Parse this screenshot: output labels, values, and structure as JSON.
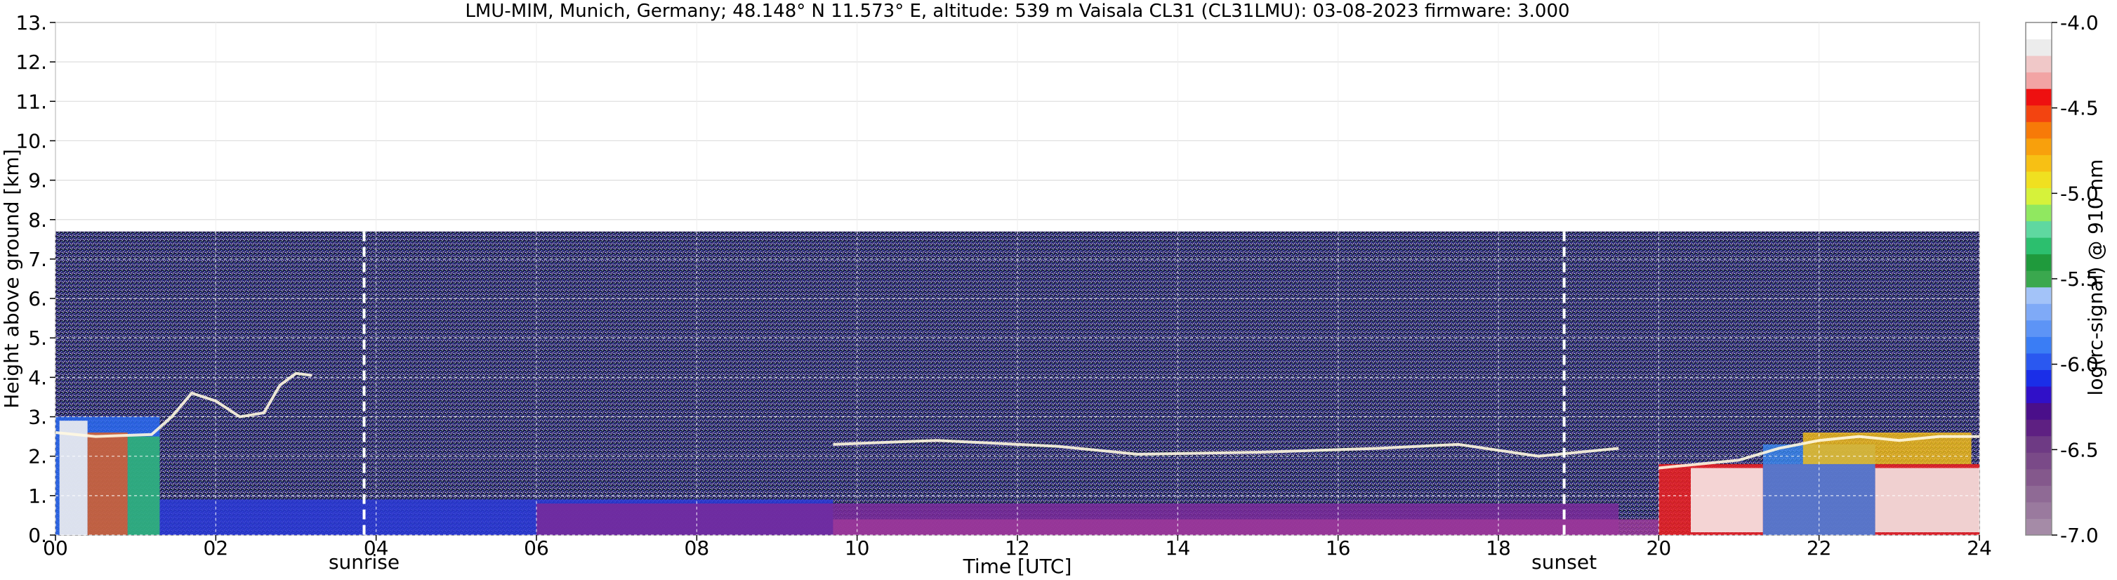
{
  "chart_data": {
    "type": "heatmap",
    "title": "LMU-MIM, Munich, Germany; 48.148° N 11.573° E, altitude: 539 m    Vaisala CL31 (CL31LMU): 03-08-2023    firmware: 3.000",
    "xlabel": "Time [UTC]",
    "ylabel": "Height above ground [km]",
    "xlim": [
      0,
      24
    ],
    "ylim": [
      0,
      13
    ],
    "x_ticks": [
      0,
      2,
      4,
      6,
      8,
      10,
      12,
      14,
      16,
      18,
      20,
      22,
      24
    ],
    "x_tick_labels": [
      "00",
      "02",
      "04",
      "06",
      "08",
      "10",
      "12",
      "14",
      "16",
      "18",
      "20",
      "22",
      "24"
    ],
    "y_ticks": [
      0,
      1,
      2,
      3,
      4,
      5,
      6,
      7,
      8,
      9,
      10,
      11,
      12,
      13
    ],
    "y_tick_labels": [
      "0.",
      "1.",
      "2.",
      "3.",
      "4.",
      "5.",
      "6.",
      "7.",
      "8.",
      "9.",
      "10.",
      "11.",
      "12.",
      "13."
    ],
    "grid": true,
    "data_top_km": 7.7,
    "colorbar": {
      "label": "log(rc-signal) @ 910 nm",
      "range": [
        -7.0,
        -4.0
      ],
      "ticks": [
        -7.0,
        -6.5,
        -6.0,
        -5.5,
        -5.0,
        -4.5,
        -4.0
      ],
      "tick_labels": [
        "-7.0",
        "-6.5",
        "-6.0",
        "-5.5",
        "-5.0",
        "-4.5",
        "-4.0"
      ],
      "colors": [
        "#a58ba7",
        "#9a7a9e",
        "#8f6a95",
        "#84588c",
        "#7a4a88",
        "#6e3a84",
        "#5e2082",
        "#4a0f8a",
        "#3010c8",
        "#1a2ee8",
        "#2a58f0",
        "#3a7df5",
        "#5d94f6",
        "#7faaf7",
        "#a3c3f8",
        "#3aa84e",
        "#1f9a3c",
        "#2cbf6e",
        "#5fd8a0",
        "#90e860",
        "#d6f23a",
        "#f0e020",
        "#f7c014",
        "#f8a00c",
        "#f77a08",
        "#f34410",
        "#ee1010",
        "#f2a4a4",
        "#f0c8c8",
        "#ececec",
        "#ffffff"
      ]
    },
    "markers": [
      {
        "label": "sunrise",
        "x": 3.85
      },
      {
        "label": "sunset",
        "x": 18.82
      }
    ],
    "cloud_layer_trace": [
      {
        "x": 0.0,
        "y": 2.6
      },
      {
        "x": 0.5,
        "y": 2.5
      },
      {
        "x": 1.2,
        "y": 2.55
      },
      {
        "x": 1.45,
        "y": 3.0
      },
      {
        "x": 1.7,
        "y": 3.6
      },
      {
        "x": 2.0,
        "y": 3.4
      },
      {
        "x": 2.3,
        "y": 3.0
      },
      {
        "x": 2.6,
        "y": 3.1
      },
      {
        "x": 2.8,
        "y": 3.8
      },
      {
        "x": 3.0,
        "y": 4.1
      },
      {
        "x": 3.2,
        "y": 4.05
      }
    ],
    "residual_layer_trace": [
      {
        "x": 9.7,
        "y": 2.3
      },
      {
        "x": 11.0,
        "y": 2.4
      },
      {
        "x": 12.5,
        "y": 2.25
      },
      {
        "x": 13.5,
        "y": 2.05
      },
      {
        "x": 15.0,
        "y": 2.1
      },
      {
        "x": 16.5,
        "y": 2.2
      },
      {
        "x": 17.5,
        "y": 2.3
      },
      {
        "x": 18.5,
        "y": 2.0
      },
      {
        "x": 19.5,
        "y": 2.2
      }
    ],
    "night_layer_trace": [
      {
        "x": 20.0,
        "y": 1.7
      },
      {
        "x": 21.0,
        "y": 1.9
      },
      {
        "x": 21.5,
        "y": 2.2
      },
      {
        "x": 22.0,
        "y": 2.4
      },
      {
        "x": 22.5,
        "y": 2.5
      },
      {
        "x": 23.0,
        "y": 2.4
      },
      {
        "x": 23.5,
        "y": 2.5
      },
      {
        "x": 24.0,
        "y": 2.5
      }
    ]
  }
}
